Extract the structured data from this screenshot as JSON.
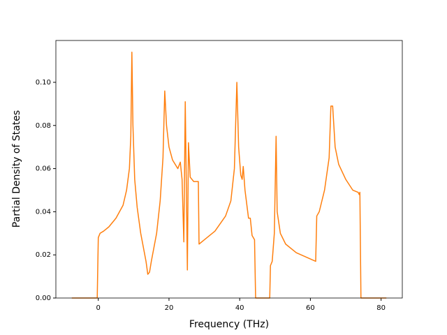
{
  "chart_data": {
    "type": "line",
    "xlabel": "Frequency (THz)",
    "ylabel": "Partial Density of States",
    "x": [
      -7.5,
      -0.3,
      0,
      0.5,
      1.5,
      3,
      5,
      7,
      8,
      8.8,
      9.2,
      9.5,
      9.8,
      10.3,
      11,
      12,
      13.5,
      14,
      14.5,
      15,
      16.5,
      17.5,
      18.3,
      18.8,
      19.3,
      20,
      21,
      22.5,
      23.2,
      23.7,
      24.2,
      24.6,
      25,
      25.2,
      25.5,
      26,
      27,
      28.3,
      28.5,
      30,
      33,
      36,
      37.5,
      38.5,
      39.2,
      39.7,
      40.3,
      40.7,
      41,
      41.5,
      42.5,
      43,
      43.5,
      44.2,
      44.5,
      48.5,
      48.7,
      49.2,
      49.8,
      50.3,
      50.6,
      51.5,
      53,
      56,
      61.5,
      61.8,
      62.5,
      64,
      65.3,
      65.8,
      66.3,
      67,
      68,
      70,
      72,
      73.5,
      73.8,
      74,
      74.3,
      81.5
    ],
    "series": [
      {
        "color": "#ff7f0e",
        "values": [
          0,
          0,
          0.028,
          0.03,
          0.031,
          0.033,
          0.037,
          0.043,
          0.05,
          0.06,
          0.075,
          0.114,
          0.08,
          0.055,
          0.042,
          0.03,
          0.017,
          0.011,
          0.012,
          0.017,
          0.03,
          0.045,
          0.065,
          0.096,
          0.08,
          0.07,
          0.064,
          0.06,
          0.063,
          0.055,
          0.026,
          0.091,
          0.04,
          0.013,
          0.072,
          0.056,
          0.054,
          0.054,
          0.025,
          0.027,
          0.031,
          0.038,
          0.045,
          0.06,
          0.1,
          0.07,
          0.057,
          0.055,
          0.061,
          0.05,
          0.037,
          0.037,
          0.029,
          0.027,
          0,
          0,
          0.015,
          0.017,
          0.03,
          0.075,
          0.04,
          0.03,
          0.025,
          0.021,
          0.017,
          0.038,
          0.04,
          0.05,
          0.065,
          0.089,
          0.089,
          0.07,
          0.062,
          0.055,
          0.05,
          0.049,
          0.048,
          0.049,
          0,
          0
        ]
      }
    ],
    "xlim": [
      -12,
      86
    ],
    "ylim": [
      0,
      0.1194
    ],
    "xticks": [
      0,
      20,
      40,
      60,
      80
    ],
    "yticks": [
      {
        "value": 0,
        "label": "0.00"
      },
      {
        "value": 0.02,
        "label": "0.02"
      },
      {
        "value": 0.04,
        "label": "0.04"
      },
      {
        "value": 0.06,
        "label": "0.06"
      },
      {
        "value": 0.08,
        "label": "0.08"
      },
      {
        "value": 0.1,
        "label": "0.10"
      }
    ]
  }
}
